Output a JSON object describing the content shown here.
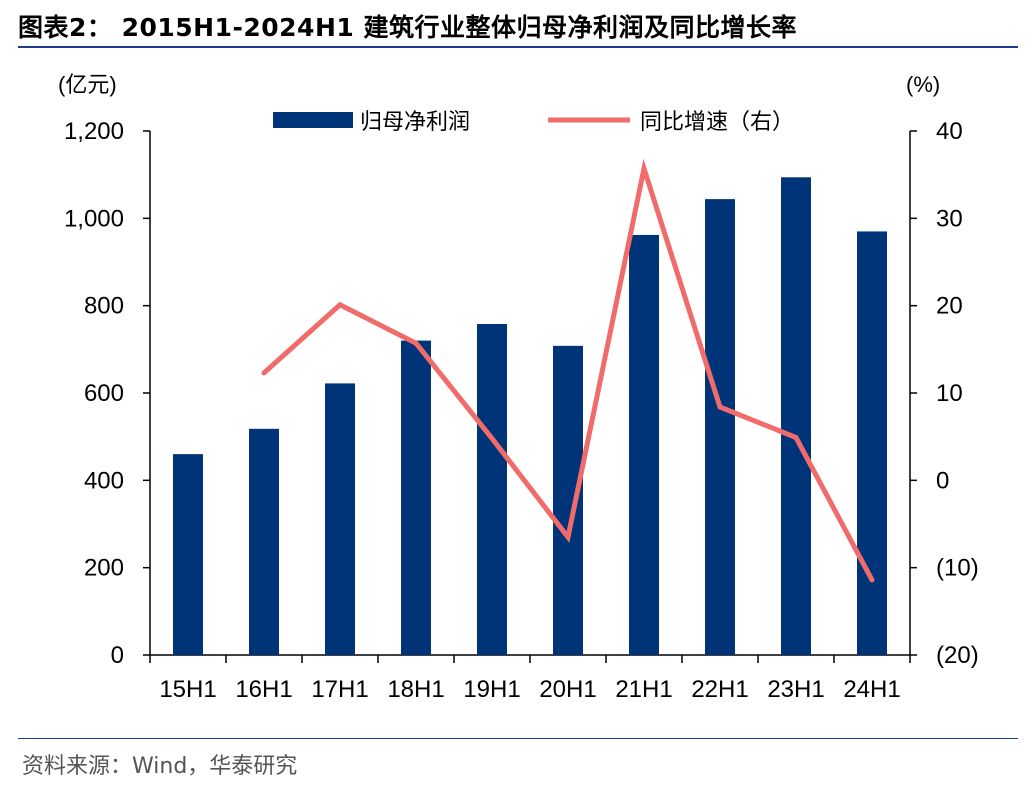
{
  "title": "图表2：  2015H1-2024H1 建筑行业整体归母净利润及同比增长率",
  "source": "资料来源：Wind，华泰研究",
  "colors": {
    "bar": "#003478",
    "line": "#f26b6b",
    "rule": "#1f3c88"
  },
  "chart_data": {
    "type": "bar",
    "categories": [
      "15H1",
      "16H1",
      "17H1",
      "18H1",
      "19H1",
      "20H1",
      "21H1",
      "22H1",
      "23H1",
      "24H1"
    ],
    "series": [
      {
        "name": "归母净利润",
        "type": "bar",
        "axis": "left",
        "values": [
          460,
          518,
          622,
          720,
          758,
          708,
          962,
          1044,
          1094,
          970
        ]
      },
      {
        "name": "同比增速（右）",
        "type": "line",
        "axis": "right",
        "values": [
          null,
          12.3,
          20.1,
          15.7,
          4.8,
          -6.5,
          35.7,
          8.4,
          4.9,
          -11.4
        ]
      }
    ],
    "left_axis": {
      "unit": "(亿元)",
      "ylim": [
        0,
        1200
      ],
      "ticks": [
        0,
        200,
        400,
        600,
        800,
        1000,
        1200
      ],
      "tick_labels": [
        "0",
        "200",
        "400",
        "600",
        "800",
        "1,000",
        "1,200"
      ]
    },
    "right_axis": {
      "unit": "(%)",
      "ylim": [
        -20,
        40
      ],
      "ticks": [
        -20,
        -10,
        0,
        10,
        20,
        30,
        40
      ],
      "tick_labels": [
        "(20)",
        "(10)",
        "0",
        "10",
        "20",
        "30",
        "40"
      ]
    },
    "legend_position": "top-center",
    "grid": false
  }
}
